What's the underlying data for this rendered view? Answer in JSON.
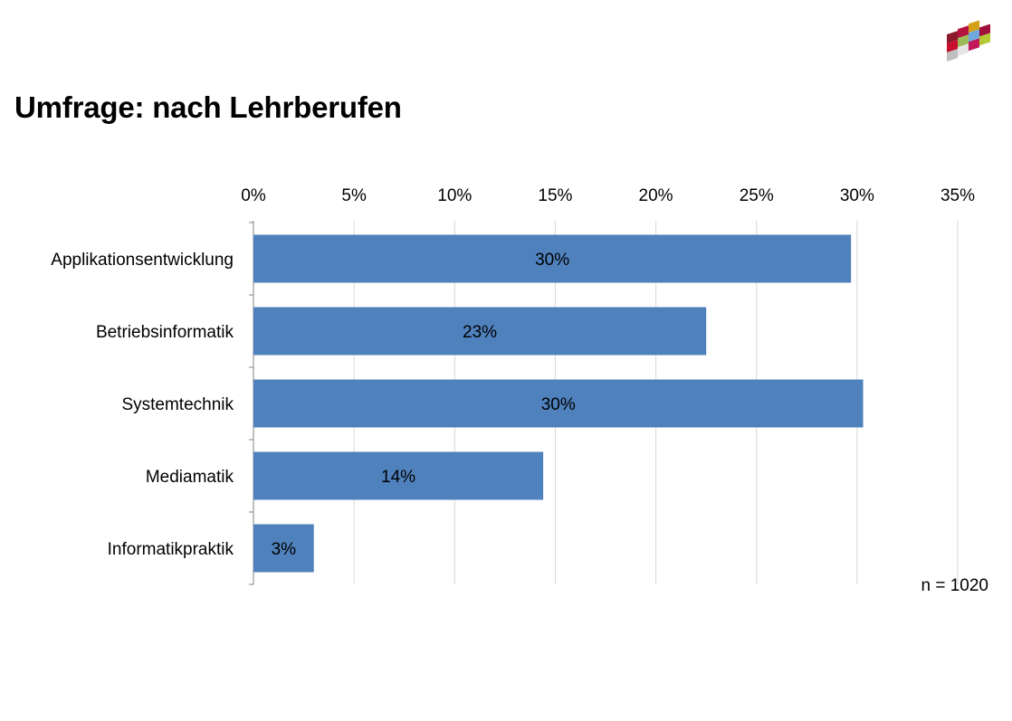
{
  "title": "Umfrage: nach Lehrberufen",
  "note": "n = 1020",
  "colors": {
    "bar": "#4F81BD",
    "grid": "#D9D9D9",
    "axis": "#868686"
  },
  "chart_data": {
    "type": "bar",
    "orientation": "horizontal",
    "title": "Umfrage: nach Lehrberufen",
    "categories": [
      "Applikationsentwicklung",
      "Betriebsinformatik",
      "Systemtechnik",
      "Mediamatik",
      "Informatikpraktik"
    ],
    "values": [
      29.7,
      22.5,
      30.3,
      14.4,
      3.0
    ],
    "data_labels": [
      "30%",
      "23%",
      "30%",
      "14%",
      "3%"
    ],
    "xlim": [
      0,
      35
    ],
    "xticks": [
      0,
      5,
      10,
      15,
      20,
      25,
      30,
      35
    ],
    "xtick_labels": [
      "0%",
      "5%",
      "10%",
      "15%",
      "20%",
      "25%",
      "30%",
      "35%"
    ],
    "xaxis_position": "top",
    "grid": true,
    "legend": "none",
    "xlabel": "",
    "ylabel": ""
  }
}
